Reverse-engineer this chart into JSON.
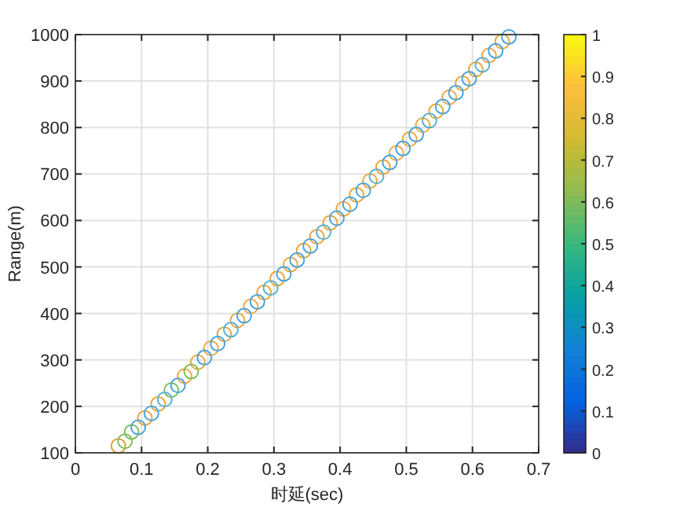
{
  "chart_data": {
    "type": "scatter",
    "xlabel": "时延(sec)",
    "ylabel": "Range(m)",
    "marker": "circle",
    "grid": true,
    "xlim": [
      0,
      0.7
    ],
    "xticks": [
      0,
      0.1,
      0.2,
      0.3,
      0.4,
      0.5,
      0.6,
      0.7
    ],
    "ylim": [
      100,
      1000
    ],
    "yticks": [
      100,
      200,
      300,
      400,
      500,
      600,
      700,
      800,
      900,
      1000
    ],
    "clim": [
      0,
      1
    ],
    "cticks": [
      0,
      0.1,
      0.2,
      0.3,
      0.4,
      0.5,
      0.6,
      0.7,
      0.8,
      0.9,
      1
    ],
    "series": [
      {
        "x": [
          0.065,
          0.085,
          0.105,
          0.125,
          0.145,
          0.165,
          0.185,
          0.205,
          0.225,
          0.245,
          0.265,
          0.285,
          0.305,
          0.325,
          0.345,
          0.365,
          0.385,
          0.405,
          0.425,
          0.445,
          0.465,
          0.485,
          0.505,
          0.525,
          0.545,
          0.565,
          0.585,
          0.605,
          0.625,
          0.645
        ],
        "values": [
          115,
          145,
          175,
          205,
          235,
          265,
          295,
          325,
          355,
          385,
          415,
          445,
          475,
          505,
          535,
          565,
          595,
          625,
          655,
          685,
          715,
          745,
          775,
          805,
          835,
          865,
          895,
          925,
          955,
          985
        ],
        "colors": [
          "#d9a53a",
          "#7dbf5a",
          "#e8a83a",
          "#e8a83a",
          "#7dbf5a",
          "#f0a848",
          "#e8a83a",
          "#e8a83a",
          "#d9a53a",
          "#e8a83a",
          "#f0a848",
          "#e8a83a",
          "#e8a83a",
          "#f0a848",
          "#e8a83a",
          "#e8a83a",
          "#e8a83a",
          "#f0a848",
          "#e8a83a",
          "#e8a83a",
          "#e8a83a",
          "#f0a848",
          "#e8a83a",
          "#e8a83a",
          "#e8a83a",
          "#f0a848",
          "#e8a83a",
          "#e8a83a",
          "#f0a848",
          "#e8a83a"
        ]
      },
      {
        "x": [
          0.075,
          0.095,
          0.115,
          0.135,
          0.155,
          0.175,
          0.195,
          0.215,
          0.235,
          0.255,
          0.275,
          0.295,
          0.315,
          0.335,
          0.355,
          0.375,
          0.395,
          0.415,
          0.435,
          0.455,
          0.475,
          0.495,
          0.515,
          0.535,
          0.555,
          0.575,
          0.595,
          0.615,
          0.635,
          0.655
        ],
        "values": [
          125,
          155,
          185,
          215,
          245,
          275,
          305,
          335,
          365,
          395,
          425,
          455,
          485,
          515,
          545,
          575,
          605,
          635,
          665,
          695,
          725,
          755,
          785,
          815,
          845,
          875,
          905,
          935,
          965,
          995
        ],
        "colors": [
          "#7dbf5a",
          "#4aa3d9",
          "#4aa3d9",
          "#5ab0d0",
          "#4aa3d9",
          "#7dbf5a",
          "#4aa3d9",
          "#4aa3d9",
          "#5ab0d0",
          "#4aa3d9",
          "#4aa3d9",
          "#5ab0d0",
          "#4aa3d9",
          "#4aa3d9",
          "#4aa3d9",
          "#5ab0d0",
          "#4aa3d9",
          "#4aa3d9",
          "#4aa3d9",
          "#5ab0d0",
          "#4aa3d9",
          "#4aa3d9",
          "#4aa3d9",
          "#5ab0d0",
          "#4aa3d9",
          "#4aa3d9",
          "#4aa3d9",
          "#5ab0d0",
          "#4aa3d9",
          "#4aa3d9"
        ]
      }
    ]
  }
}
